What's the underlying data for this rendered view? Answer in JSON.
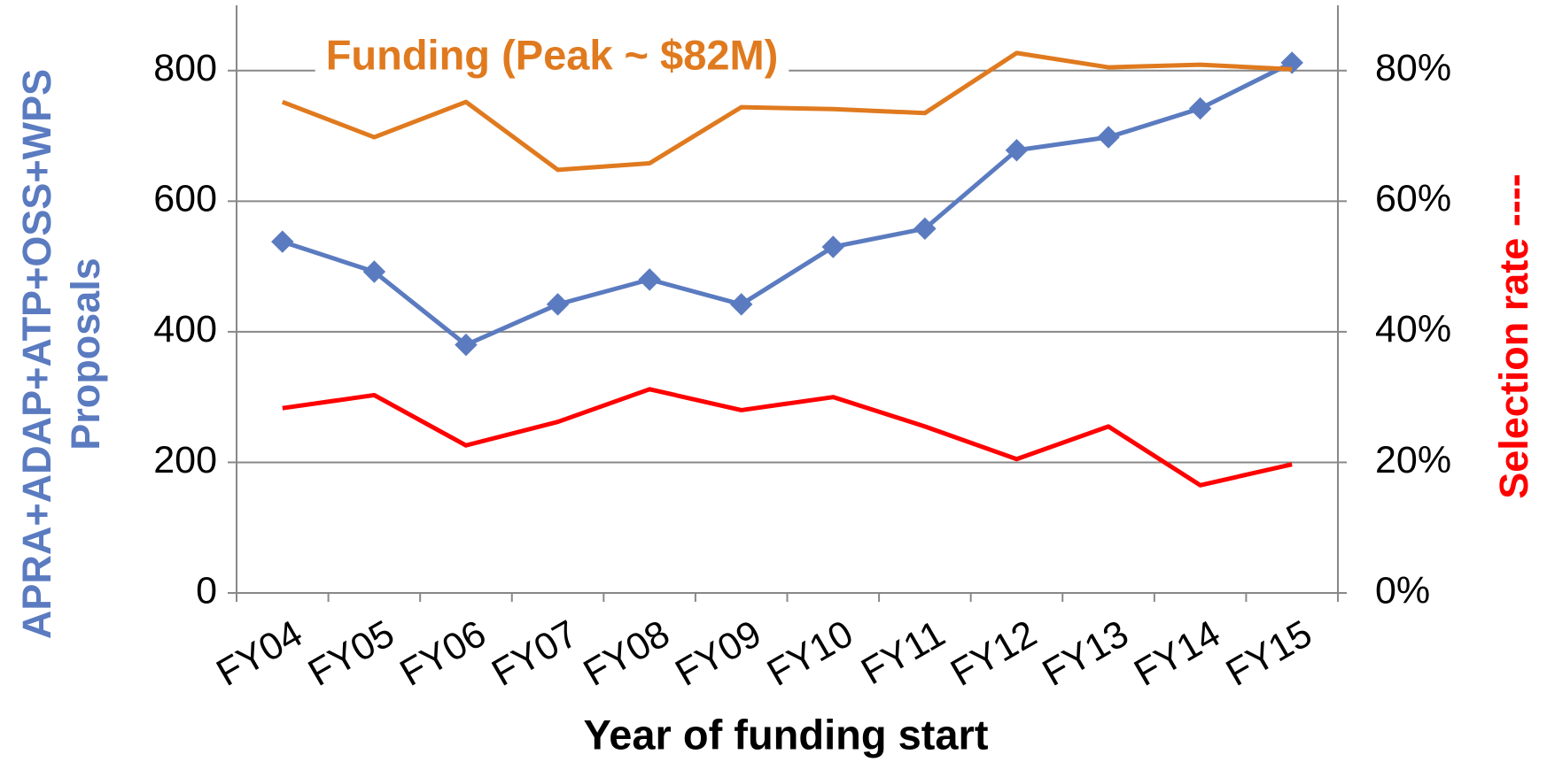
{
  "chart_data": {
    "type": "line",
    "xlabel": "Year of funding start",
    "ylabel": [
      "APRA+ADAP+ATP+OSS+WPS",
      "Proposals"
    ],
    "y2label": "Selection rate ----",
    "categories": [
      "FY04",
      "FY05",
      "FY06",
      "FY07",
      "FY08",
      "FY09",
      "FY10",
      "FY11",
      "FY12",
      "FY13",
      "FY14",
      "FY15"
    ],
    "ylim": [
      0,
      900
    ],
    "yticks": [
      0,
      200,
      400,
      600,
      800
    ],
    "y2lim": [
      0,
      90
    ],
    "y2ticks": [
      {
        "value": 0,
        "label": "0%"
      },
      {
        "value": 20,
        "label": "20%"
      },
      {
        "value": 40,
        "label": "40%"
      },
      {
        "value": 60,
        "label": "60%"
      },
      {
        "value": 80,
        "label": "80%"
      }
    ],
    "grid": true,
    "series": [
      {
        "color": "#5b7bc0",
        "markers": true,
        "values": [
          538,
          492,
          380,
          442,
          480,
          442,
          530,
          558,
          678,
          698,
          742,
          812
        ]
      },
      {
        "name": "Funding (Peak ~ $82M)",
        "color": "#e07a1f",
        "axis": "y2",
        "values": [
          75.2,
          69.8,
          75.2,
          64.8,
          65.8,
          74.4,
          74.1,
          73.5,
          82.7,
          80.5,
          80.9,
          80.2
        ]
      },
      {
        "color": "#ff0000",
        "axis": "y2",
        "values": [
          28.3,
          30.3,
          22.6,
          26.2,
          31.2,
          28.0,
          30.0,
          25.5,
          20.5,
          25.5,
          16.5,
          19.7
        ]
      }
    ]
  }
}
